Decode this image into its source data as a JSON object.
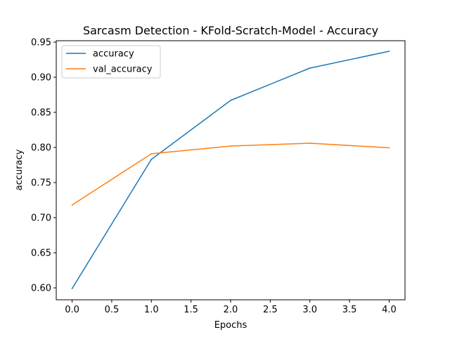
{
  "chart_data": {
    "type": "line",
    "title": "Sarcasm Detection - KFold-Scratch-Model - Accuracy",
    "xlabel": "Epochs",
    "ylabel": "accuracy",
    "x": [
      0,
      1,
      2,
      3,
      4
    ],
    "xticks": [
      "0.0",
      "0.5",
      "1.0",
      "1.5",
      "2.0",
      "2.5",
      "3.0",
      "3.5",
      "4.0"
    ],
    "yticks": [
      "0.60",
      "0.65",
      "0.70",
      "0.75",
      "0.80",
      "0.85",
      "0.90",
      "0.95"
    ],
    "xlim": [
      -0.2,
      4.2
    ],
    "ylim": [
      0.583,
      0.952
    ],
    "grid": false,
    "legend_position": "upper-left",
    "series": [
      {
        "name": "accuracy",
        "color": "#1f77b4",
        "values": [
          0.599,
          0.783,
          0.867,
          0.913,
          0.937
        ]
      },
      {
        "name": "val_accuracy",
        "color": "#ff7f0e",
        "values": [
          0.718,
          0.791,
          0.802,
          0.806,
          0.7995
        ]
      }
    ]
  }
}
